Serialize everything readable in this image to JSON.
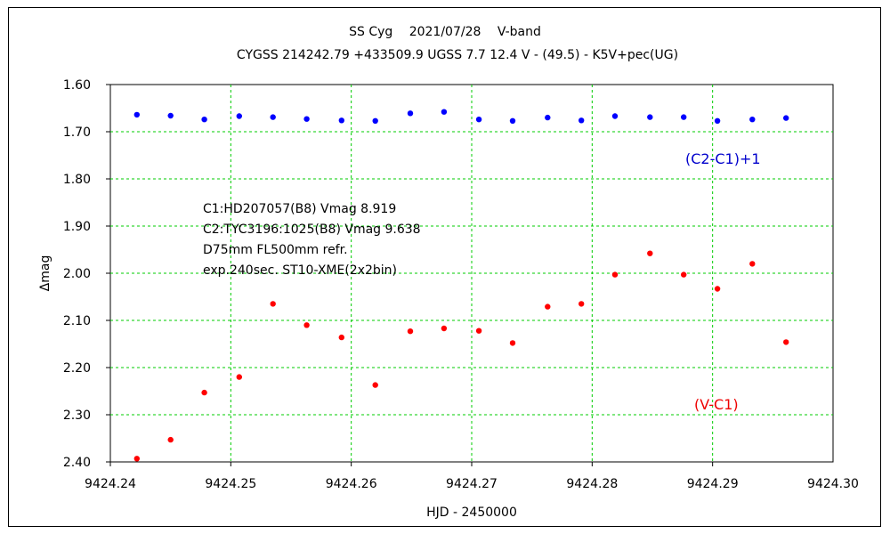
{
  "chart_data": {
    "type": "scatter",
    "title": "SS Cyg　 2021/07/28　 V-band",
    "subtitle": "CYGSS 214242.79 +433509.9 UGSS 7.7 12.4 V - (49.5) - K5V+pec(UG)",
    "xlabel": "HJD - 2450000",
    "ylabel": "Δmag",
    "xlim": [
      9424.24,
      9424.3
    ],
    "ylim": [
      1.6,
      2.4
    ],
    "y_inverted": true,
    "grid": true,
    "grid_color": "#00cc00",
    "x_ticks": [
      "9424.24",
      "9424.25",
      "9424.26",
      "9424.27",
      "9424.28",
      "9424.29",
      "9424.30"
    ],
    "y_ticks": [
      "1.60",
      "1.70",
      "1.80",
      "1.90",
      "2.00",
      "2.10",
      "2.20",
      "2.30",
      "2.40"
    ],
    "annotations": [
      "C1:HD207057(B8) Vmag 8.919",
      "C2:TYC3196:1025(B8) Vmag 9.638",
      "D75mm  FL500mm  refr.",
      "exp.240sec.   ST10-XME(2x2bin)"
    ],
    "series": [
      {
        "name": "(C2-C1)+1",
        "color": "#0000ff",
        "x": [
          9424.2422,
          9424.245,
          9424.2478,
          9424.2507,
          9424.2535,
          9424.2563,
          9424.2592,
          9424.262,
          9424.2649,
          9424.2677,
          9424.2706,
          9424.2734,
          9424.2763,
          9424.2791,
          9424.2819,
          9424.2848,
          9424.2876,
          9424.2904,
          9424.2933,
          9424.2961
        ],
        "y": [
          1.664,
          1.666,
          1.674,
          1.667,
          1.669,
          1.673,
          1.676,
          1.677,
          1.661,
          1.658,
          1.674,
          1.677,
          1.67,
          1.676,
          1.667,
          1.669,
          1.669,
          1.677,
          1.674,
          1.671
        ]
      },
      {
        "name": "(V-C1)",
        "color": "#ff0000",
        "x": [
          9424.2422,
          9424.245,
          9424.2478,
          9424.2507,
          9424.2535,
          9424.2563,
          9424.2592,
          9424.262,
          9424.2649,
          9424.2677,
          9424.2706,
          9424.2734,
          9424.2763,
          9424.2791,
          9424.2819,
          9424.2848,
          9424.2876,
          9424.2904,
          9424.2933,
          9424.2961
        ],
        "y": [
          2.393,
          2.353,
          2.253,
          2.22,
          2.065,
          2.11,
          2.136,
          2.237,
          2.123,
          2.117,
          2.122,
          2.148,
          2.071,
          2.065,
          2.003,
          1.958,
          2.003,
          2.033,
          1.98,
          2.146
        ]
      }
    ]
  }
}
